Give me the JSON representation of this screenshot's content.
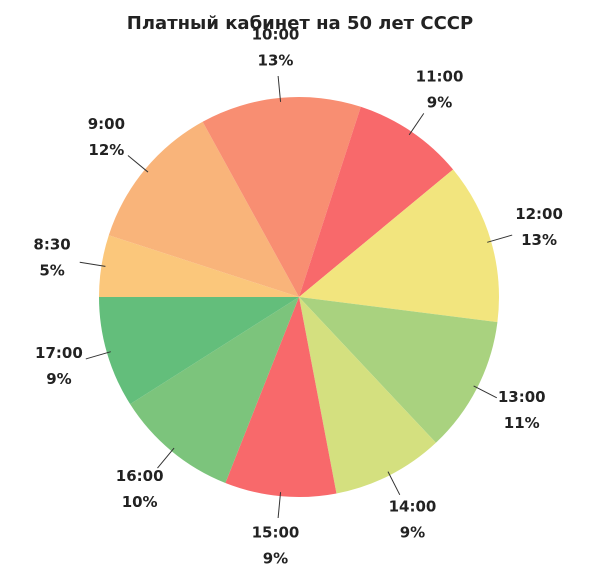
{
  "chart_data": {
    "type": "pie",
    "title": "Платный кабинет на 50 лет СССР",
    "categories": [
      "8:30",
      "9:00",
      "10:00",
      "11:00",
      "12:00",
      "13:00",
      "14:00",
      "15:00",
      "16:00",
      "17:00"
    ],
    "values": [
      5,
      12,
      13,
      9,
      13,
      11,
      9,
      9,
      10,
      9
    ],
    "value_labels": [
      "5%",
      "12%",
      "13%",
      "9%",
      "13%",
      "11%",
      "9%",
      "9%",
      "10%",
      "9%"
    ],
    "colors": [
      "#fbc77b",
      "#f9b47a",
      "#f88e72",
      "#f8696b",
      "#f2e57e",
      "#a9d27f",
      "#d4e07f",
      "#f8696b",
      "#7cc47c",
      "#63be7b"
    ]
  }
}
